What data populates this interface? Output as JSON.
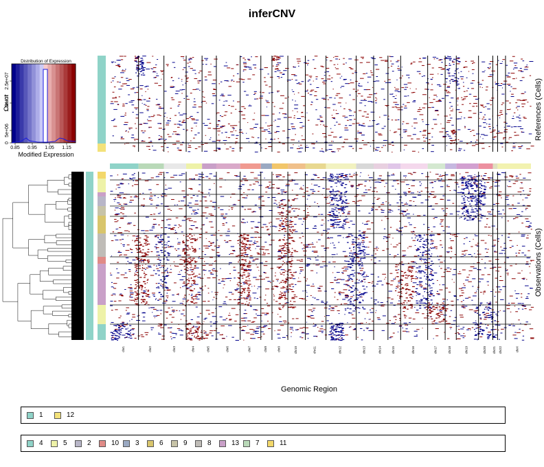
{
  "title": "inferCNV",
  "colors": {
    "amplification": "#8b0000",
    "deletion": "#00008b",
    "neutral": "#ffffff"
  },
  "histogram": {
    "title": "Distribution of Expression",
    "xlabel": "Modified Expression",
    "ylabel": "Count",
    "x_ticks": [
      "0.85",
      "0.95",
      "1.05",
      "1.15"
    ],
    "y_ticks": [
      "0",
      "5e+06",
      "1.5e+07",
      "2.5e+07"
    ]
  },
  "labels": {
    "references": "References (Cells)",
    "observations": "Observations (Cells)",
    "xlabel": "Genomic Region"
  },
  "chromosomes": [
    "chr1",
    "chr2",
    "chr3",
    "chr4",
    "chr5",
    "chr6",
    "chr7",
    "chr8",
    "chr9",
    "chr10",
    "chr11",
    "chr12",
    "chr13",
    "chr14",
    "chr15",
    "chr16",
    "chr17",
    "chr18",
    "chr19",
    "chr20",
    "chr21",
    "chr22",
    "chrX"
  ],
  "reference_groups": [
    {
      "name": "1",
      "color": "#8fd3c8"
    },
    {
      "name": "12",
      "color": "#f3e27a"
    }
  ],
  "observation_groups": [
    {
      "name": "4",
      "color": "#8fd3c8"
    },
    {
      "name": "5",
      "color": "#eef2a8"
    },
    {
      "name": "2",
      "color": "#b8b6c8"
    },
    {
      "name": "10",
      "color": "#e08b87"
    },
    {
      "name": "3",
      "color": "#9aa9c2"
    },
    {
      "name": "6",
      "color": "#d8c56c"
    },
    {
      "name": "9",
      "color": "#c7c3a7"
    },
    {
      "name": "8",
      "color": "#bfbcb7"
    },
    {
      "name": "13",
      "color": "#c9a0c8"
    },
    {
      "name": "7",
      "color": "#b9d9b8"
    },
    {
      "name": "11",
      "color": "#f3d86a"
    }
  ]
}
